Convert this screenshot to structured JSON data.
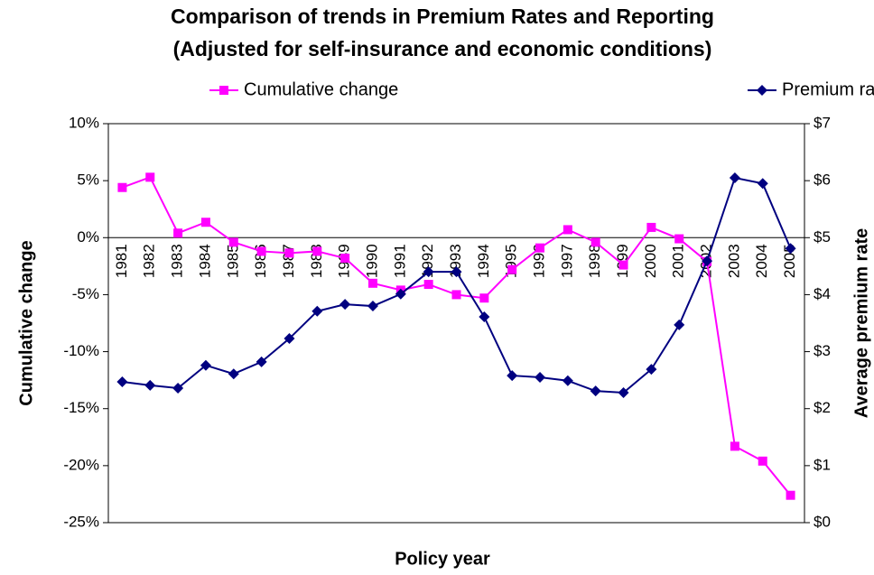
{
  "chart_data": {
    "type": "line",
    "title": "Comparison of trends in Premium Rates and Reporting",
    "subtitle": "(Adjusted for self-insurance and economic conditions)",
    "x_label": "Policy year",
    "y_label": "Cumulative change",
    "y2_label": "Average premium rate",
    "categories": [
      "1981",
      "1982",
      "1983",
      "1984",
      "1985",
      "1986",
      "1987",
      "1988",
      "1989",
      "1990",
      "1991",
      "1992",
      "1993",
      "1994",
      "1995",
      "1996",
      "1997",
      "1998",
      "1999",
      "2000",
      "2001",
      "2002",
      "2003",
      "2004",
      "2005"
    ],
    "series": [
      {
        "name": "Cumulative change",
        "color": "#ff00ff",
        "marker": "square",
        "values": [
          4.4,
          5.3,
          0.4,
          1.35,
          -0.4,
          -1.2,
          -1.35,
          -1.2,
          -1.8,
          -4.0,
          -4.6,
          -4.1,
          -5.0,
          -5.3,
          -2.8,
          -0.9,
          0.7,
          -0.4,
          -2.4,
          0.9,
          -0.1,
          -2.1,
          -18.3,
          -19.6,
          -22.6
        ]
      },
      {
        "name": "Premium rate",
        "color": "#000080",
        "marker": "diamond",
        "axis": "y2",
        "values": [
          2.47,
          2.41,
          2.36,
          2.76,
          2.61,
          2.82,
          3.23,
          3.71,
          3.83,
          3.8,
          4.01,
          4.4,
          4.4,
          3.61,
          2.58,
          2.55,
          2.49,
          2.31,
          2.28,
          2.69,
          3.47,
          4.59,
          6.05,
          5.95,
          4.81
        ]
      }
    ],
    "ylim": [
      -25,
      10
    ],
    "yticks": [
      {
        "value": -25,
        "label": "-25%"
      },
      {
        "value": -20,
        "label": "-20%"
      },
      {
        "value": -15,
        "label": "-15%"
      },
      {
        "value": -10,
        "label": "-10%"
      },
      {
        "value": -5,
        "label": "-5%"
      },
      {
        "value": 0,
        "label": "0%"
      },
      {
        "value": 5,
        "label": "5%"
      },
      {
        "value": 10,
        "label": "10%"
      }
    ],
    "y2lim": [
      0,
      7
    ],
    "y2ticks": [
      {
        "value": 0,
        "label": "$0"
      },
      {
        "value": 1,
        "label": "$1"
      },
      {
        "value": 2,
        "label": "$2"
      },
      {
        "value": 3,
        "label": "$3"
      },
      {
        "value": 4,
        "label": "$4"
      },
      {
        "value": 5,
        "label": "$5"
      },
      {
        "value": 6,
        "label": "$6"
      },
      {
        "value": 7,
        "label": "$7"
      }
    ],
    "grid": false
  }
}
